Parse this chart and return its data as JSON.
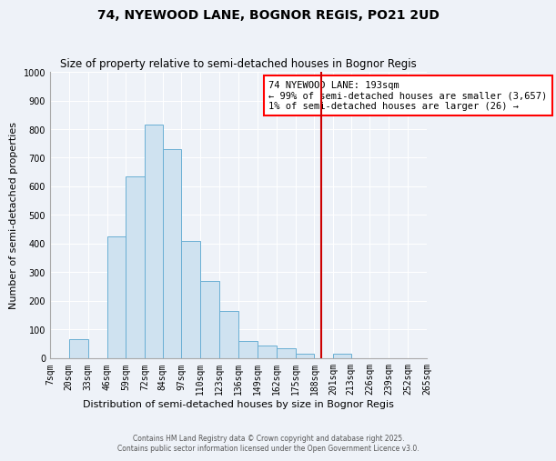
{
  "title": "74, NYEWOOD LANE, BOGNOR REGIS, PO21 2UD",
  "subtitle": "Size of property relative to semi-detached houses in Bognor Regis",
  "xlabel": "Distribution of semi-detached houses by size in Bognor Regis",
  "ylabel": "Number of semi-detached properties",
  "bin_labels": [
    "7sqm",
    "20sqm",
    "33sqm",
    "46sqm",
    "59sqm",
    "72sqm",
    "84sqm",
    "97sqm",
    "110sqm",
    "123sqm",
    "136sqm",
    "149sqm",
    "162sqm",
    "175sqm",
    "188sqm",
    "201sqm",
    "213sqm",
    "226sqm",
    "239sqm",
    "252sqm",
    "265sqm"
  ],
  "bin_edges": [
    7,
    20,
    33,
    46,
    59,
    72,
    84,
    97,
    110,
    123,
    136,
    149,
    162,
    175,
    188,
    201,
    213,
    226,
    239,
    252,
    265
  ],
  "bar_heights": [
    0,
    65,
    0,
    425,
    635,
    815,
    730,
    410,
    270,
    165,
    60,
    45,
    35,
    15,
    0,
    15,
    0,
    0,
    0,
    0
  ],
  "bar_color": "#cfe2f0",
  "bar_edge_color": "#6aafd4",
  "vline_x": 193,
  "vline_color": "#cc0000",
  "annotation_title": "74 NYEWOOD LANE: 193sqm",
  "annotation_line1": "← 99% of semi-detached houses are smaller (3,657)",
  "annotation_line2": "1% of semi-detached houses are larger (26) →",
  "ylim": [
    0,
    1000
  ],
  "yticks": [
    0,
    100,
    200,
    300,
    400,
    500,
    600,
    700,
    800,
    900,
    1000
  ],
  "footer1": "Contains HM Land Registry data © Crown copyright and database right 2025.",
  "footer2": "Contains public sector information licensed under the Open Government Licence v3.0.",
  "bg_color": "#eef2f8",
  "grid_color": "#ffffff",
  "title_fontsize": 10,
  "subtitle_fontsize": 8.5,
  "label_fontsize": 8,
  "tick_fontsize": 7,
  "annotation_fontsize": 7.5,
  "footer_fontsize": 5.5
}
